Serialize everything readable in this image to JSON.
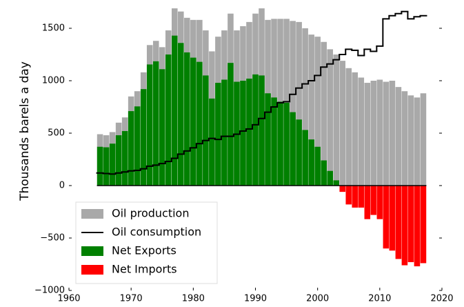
{
  "chart_data": {
    "type": "bar",
    "ylabel": "Thousands barels a day",
    "x": [
      1965,
      1966,
      1967,
      1968,
      1969,
      1970,
      1971,
      1972,
      1973,
      1974,
      1975,
      1976,
      1977,
      1978,
      1979,
      1980,
      1981,
      1982,
      1983,
      1984,
      1985,
      1986,
      1987,
      1988,
      1989,
      1990,
      1991,
      1992,
      1993,
      1994,
      1995,
      1996,
      1997,
      1998,
      1999,
      2000,
      2001,
      2002,
      2003,
      2004,
      2005,
      2006,
      2007,
      2008,
      2009,
      2010,
      2011,
      2012,
      2013,
      2014,
      2015,
      2016,
      2017
    ],
    "series": [
      {
        "name": "Oil production",
        "type": "bar",
        "color": "#a9a9a9",
        "values": [
          490,
          480,
          510,
          600,
          650,
          850,
          900,
          1080,
          1340,
          1380,
          1320,
          1480,
          1690,
          1660,
          1600,
          1580,
          1580,
          1480,
          1280,
          1420,
          1480,
          1640,
          1480,
          1520,
          1560,
          1640,
          1690,
          1580,
          1590,
          1590,
          1590,
          1570,
          1560,
          1500,
          1440,
          1420,
          1370,
          1300,
          1250,
          1190,
          1120,
          1080,
          1030,
          980,
          1000,
          1010,
          990,
          1000,
          940,
          900,
          860,
          840,
          880
        ]
      },
      {
        "name": "Oil consumption",
        "type": "step",
        "color": "#000000",
        "values": [
          120,
          115,
          110,
          120,
          130,
          140,
          145,
          160,
          185,
          195,
          210,
          230,
          260,
          300,
          330,
          360,
          400,
          430,
          450,
          440,
          470,
          470,
          490,
          520,
          540,
          580,
          640,
          700,
          750,
          790,
          800,
          870,
          930,
          970,
          1000,
          1050,
          1130,
          1160,
          1200,
          1250,
          1300,
          1290,
          1240,
          1300,
          1280,
          1330,
          1590,
          1620,
          1640,
          1660,
          1590,
          1610,
          1620
        ]
      },
      {
        "name": "Net Exports",
        "type": "bar",
        "color": "#008000",
        "values": [
          370,
          365,
          400,
          480,
          520,
          710,
          755,
          920,
          1155,
          1185,
          1110,
          1250,
          1430,
          1360,
          1270,
          1220,
          1180,
          1050,
          830,
          980,
          1010,
          1170,
          990,
          1000,
          1020,
          1060,
          1050,
          880,
          840,
          800,
          790,
          700,
          630,
          530,
          440,
          370,
          240,
          140,
          50,
          null,
          null,
          null,
          null,
          null,
          null,
          null,
          null,
          null,
          null,
          null,
          null,
          null,
          null
        ]
      },
      {
        "name": "Net Imports",
        "type": "bar",
        "color": "#ff0000",
        "values": [
          null,
          null,
          null,
          null,
          null,
          null,
          null,
          null,
          null,
          null,
          null,
          null,
          null,
          null,
          null,
          null,
          null,
          null,
          null,
          null,
          null,
          null,
          null,
          null,
          null,
          null,
          null,
          null,
          null,
          null,
          null,
          null,
          null,
          null,
          null,
          null,
          null,
          null,
          null,
          -60,
          -180,
          -210,
          -210,
          -320,
          -280,
          -320,
          -600,
          -620,
          -700,
          -760,
          -730,
          -770,
          -740
        ]
      }
    ],
    "xlim": [
      1960,
      2020
    ],
    "xticks": [
      1960,
      1970,
      1980,
      1990,
      2000,
      2010,
      2020
    ],
    "ylim": [
      -1000,
      1700
    ],
    "yticks": [
      {
        "value": -1000,
        "label": "−1000"
      },
      {
        "value": -500,
        "label": "−500"
      },
      0,
      500,
      1000,
      1500
    ],
    "legend": "lower left"
  }
}
